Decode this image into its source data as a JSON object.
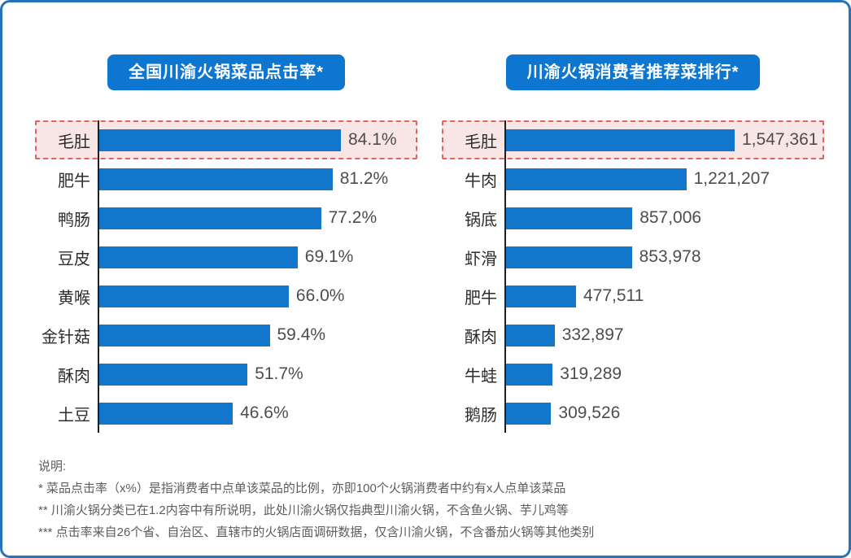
{
  "panel": {
    "border_color": "#2473bb",
    "background": "#ffffff"
  },
  "colors": {
    "bar": "#1277cc",
    "title_pill_bg": "#0d76d1",
    "title_pill_text": "#ffffff",
    "highlight_bg": "#f8e6e6",
    "highlight_border": "#e0635e",
    "axis": "#1f1f1f",
    "category_label": "#2d2d2d",
    "value_label": "#4d4d4d",
    "notes_text": "#5c5c5c"
  },
  "chart_data": [
    {
      "type": "bar",
      "orientation": "horizontal",
      "title": "全国川渝火锅菜品点击率*",
      "categories": [
        "毛肚",
        "肥牛",
        "鸭肠",
        "豆皮",
        "黄喉",
        "金针菇",
        "酥肉",
        "土豆"
      ],
      "values": [
        84.1,
        81.2,
        77.2,
        69.1,
        66.0,
        59.4,
        51.7,
        46.6
      ],
      "value_labels": [
        "84.1%",
        "81.2%",
        "77.2%",
        "69.1%",
        "66.0%",
        "59.4%",
        "51.7%",
        "46.6%"
      ],
      "value_format": "percent",
      "highlighted_category": "毛肚",
      "xlabel": "",
      "ylabel": "",
      "grid": false,
      "legend": "none"
    },
    {
      "type": "bar",
      "orientation": "horizontal",
      "title": "川渝火锅消费者推荐菜排行*",
      "categories": [
        "毛肚",
        "牛肉",
        "锅底",
        "虾滑",
        "肥牛",
        "酥肉",
        "牛蛙",
        "鹅肠"
      ],
      "values": [
        1547361,
        1221207,
        857006,
        853978,
        477511,
        332897,
        319289,
        309526
      ],
      "value_labels": [
        "1,547,361",
        "1,221,207",
        "857,006",
        "853,978",
        "477,511",
        "332,897",
        "319,289",
        "309,526"
      ],
      "value_format": "count",
      "highlighted_category": "毛肚",
      "xlabel": "",
      "ylabel": "",
      "grid": false,
      "legend": "none"
    }
  ],
  "notes": {
    "heading": "说明:",
    "items": [
      "* 菜品点击率（x%）是指消费者中点单该菜品的比例，亦即100个火锅消费者中约有x人点单该菜品",
      "** 川渝火锅分类已在1.2内容中有所说明，此处川渝火锅仅指典型川渝火锅，不含鱼火锅、芋儿鸡等",
      "*** 点击率来自26个省、自治区、直辖市的火锅店面调研数据，仅含川渝火锅，不含番茄火锅等其他类别"
    ]
  }
}
